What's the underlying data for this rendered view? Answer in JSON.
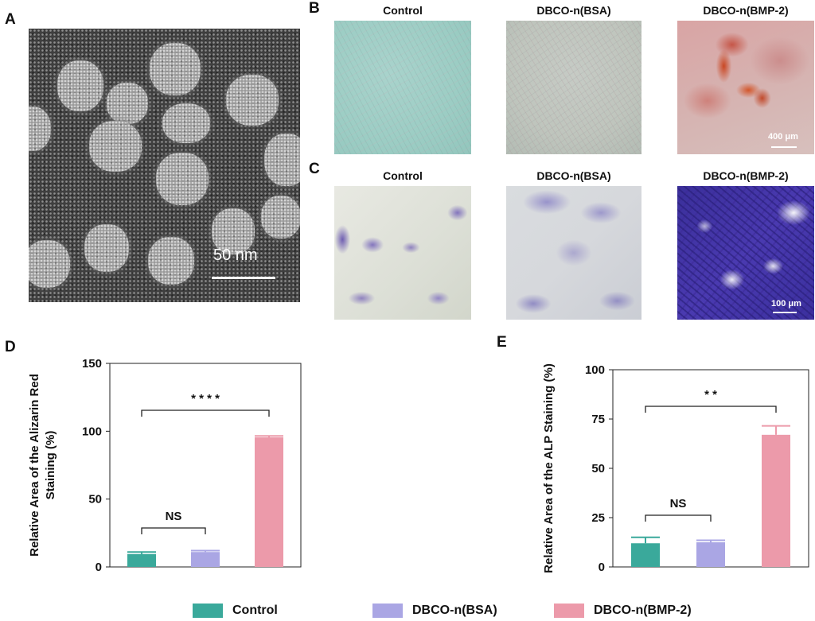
{
  "panels": {
    "a": {
      "letter": "A",
      "scale_label": "50 nm"
    },
    "b": {
      "letter": "B",
      "titles": [
        "Control",
        "DBCO-n(BSA)",
        "DBCO-n(BMP-2)"
      ],
      "scale_label": "400 μm"
    },
    "c": {
      "letter": "C",
      "titles": [
        "Control",
        "DBCO-n(BSA)",
        "DBCO-n(BMP-2)"
      ],
      "scale_label": "100 μm"
    },
    "d": {
      "letter": "D"
    },
    "e": {
      "letter": "E"
    }
  },
  "legend": [
    {
      "label": "Control",
      "color": "#3aa99b"
    },
    {
      "label": "DBCO-n(BSA)",
      "color": "#aaa6e4"
    },
    {
      "label": "DBCO-n(BMP-2)",
      "color": "#ec9aaa"
    }
  ],
  "chart_data": [
    {
      "panel": "D",
      "type": "bar",
      "categories": [
        "Control",
        "DBCO-n(BSA)",
        "DBCO-n(BMP-2)"
      ],
      "values": [
        9.5,
        11,
        95.5
      ],
      "errors": [
        1.5,
        1,
        1
      ],
      "colors": [
        "#3aa99b",
        "#aaa6e4",
        "#ec9aaa"
      ],
      "ylabel": "Relative Area of the Alizarin Red Staining (%)",
      "ylabel_lines": [
        "Relative Area of the Alizarin Red",
        "Staining (%)"
      ],
      "ylim": [
        0,
        150
      ],
      "yticks": [
        0,
        50,
        100,
        150
      ],
      "annotations": [
        {
          "from": 0,
          "to": 1,
          "label": "NS"
        },
        {
          "from": 0,
          "to": 2,
          "label": "* * * *"
        }
      ]
    },
    {
      "panel": "E",
      "type": "bar",
      "categories": [
        "Control",
        "DBCO-n(BSA)",
        "DBCO-n(BMP-2)"
      ],
      "values": [
        12,
        12.5,
        67
      ],
      "errors": [
        3,
        1,
        4.5
      ],
      "colors": [
        "#3aa99b",
        "#aaa6e4",
        "#ec9aaa"
      ],
      "ylabel": "Relative Area of the ALP Staining (%)",
      "ylabel_lines": [
        "Relative Area of the ALP Staining (%)"
      ],
      "ylim": [
        0,
        100
      ],
      "yticks": [
        0,
        25,
        50,
        75,
        100
      ],
      "annotations": [
        {
          "from": 0,
          "to": 1,
          "label": "NS"
        },
        {
          "from": 0,
          "to": 2,
          "label": "* *"
        }
      ]
    }
  ]
}
